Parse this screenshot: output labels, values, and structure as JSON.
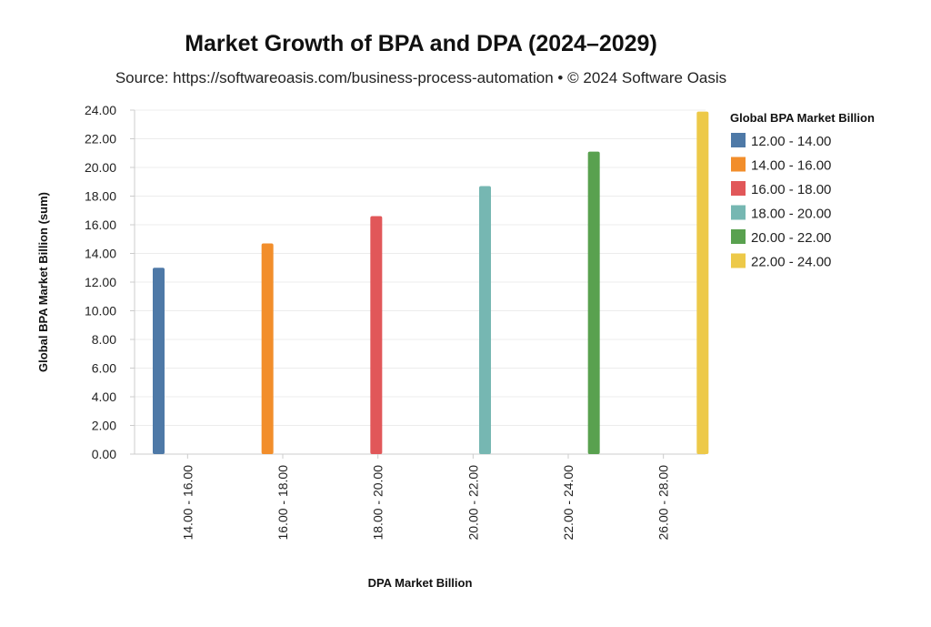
{
  "chart_data": {
    "type": "bar",
    "title": "Market Growth of BPA and DPA (2024–2029)",
    "subtitle": "Source: https://softwareoasis.com/business-process-automation • © 2024 Software Oasis",
    "xlabel": "DPA Market Billion",
    "ylabel": "Global BPA Market Billion (sum)",
    "categories": [
      "14.00 - 16.00",
      "16.00 - 18.00",
      "18.00 - 20.00",
      "20.00 - 22.00",
      "22.00 - 24.00",
      "26.00 - 28.00"
    ],
    "ylim": [
      0,
      24
    ],
    "yticks": [
      "0.00",
      "2.00",
      "4.00",
      "6.00",
      "8.00",
      "10.00",
      "12.00",
      "14.00",
      "16.00",
      "18.00",
      "20.00",
      "22.00",
      "24.00"
    ],
    "grid": true,
    "legend": {
      "title": "Global BPA Market Billion",
      "placement": "right"
    },
    "series": [
      {
        "name": "12.00 - 14.00",
        "color": "#4e79a7",
        "values": [
          13.0,
          null,
          null,
          null,
          null,
          null
        ]
      },
      {
        "name": "14.00 - 16.00",
        "color": "#f28e2b",
        "values": [
          null,
          14.7,
          null,
          null,
          null,
          null
        ]
      },
      {
        "name": "16.00 - 18.00",
        "color": "#e15759",
        "values": [
          null,
          null,
          16.6,
          null,
          null,
          null
        ]
      },
      {
        "name": "18.00 - 20.00",
        "color": "#76b7b2",
        "values": [
          null,
          null,
          null,
          18.7,
          null,
          null
        ]
      },
      {
        "name": "20.00 - 22.00",
        "color": "#59a14f",
        "values": [
          null,
          null,
          null,
          null,
          21.1,
          null
        ]
      },
      {
        "name": "22.00 - 24.00",
        "color": "#edc948",
        "values": [
          null,
          null,
          null,
          null,
          null,
          23.9
        ]
      }
    ]
  }
}
